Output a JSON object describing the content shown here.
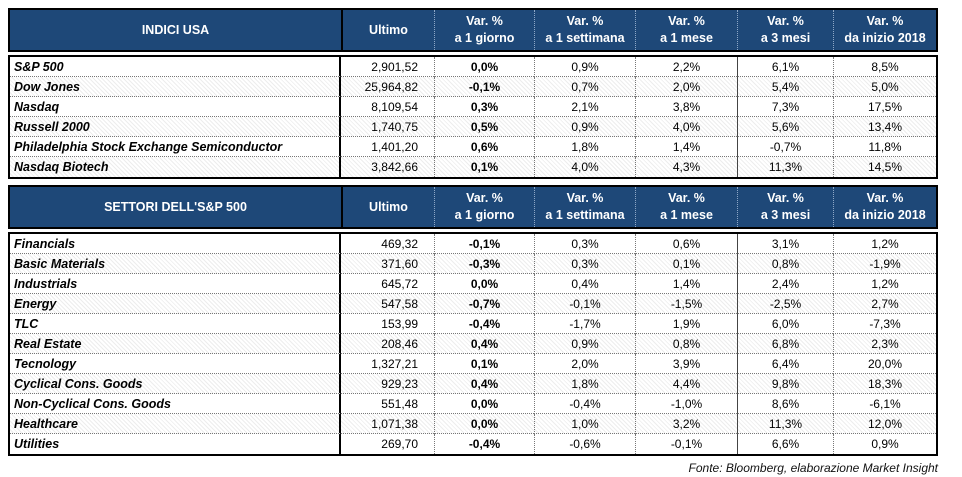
{
  "colors": {
    "header_bg": "#1E4878",
    "header_text": "#FFFFFF",
    "border": "#000000"
  },
  "headers": {
    "ultimo": "Ultimo",
    "var_top": "Var. %",
    "var_subs": [
      "a 1 giorno",
      "a 1 settimana",
      "a 1 mese",
      "a 3 mesi",
      "da inizio 2018"
    ]
  },
  "tables": [
    {
      "title": "INDICI USA",
      "rows": [
        {
          "name": "S&P 500",
          "ultimo": "2,901,52",
          "vars": [
            "0,0%",
            "0,9%",
            "2,2%",
            "6,1%",
            "8,5%"
          ]
        },
        {
          "name": "Dow Jones",
          "ultimo": "25,964,82",
          "vars": [
            "-0,1%",
            "0,7%",
            "2,0%",
            "5,4%",
            "5,0%"
          ]
        },
        {
          "name": "Nasdaq",
          "ultimo": "8,109,54",
          "vars": [
            "0,3%",
            "2,1%",
            "3,8%",
            "7,3%",
            "17,5%"
          ]
        },
        {
          "name": "Russell 2000",
          "ultimo": "1,740,75",
          "vars": [
            "0,5%",
            "0,9%",
            "4,0%",
            "5,6%",
            "13,4%"
          ]
        },
        {
          "name": "Philadelphia Stock Exchange Semiconductor",
          "ultimo": "1,401,20",
          "vars": [
            "0,6%",
            "1,8%",
            "1,4%",
            "-0,7%",
            "11,8%"
          ]
        },
        {
          "name": "Nasdaq Biotech",
          "ultimo": "3,842,66",
          "vars": [
            "0,1%",
            "4,0%",
            "4,3%",
            "11,3%",
            "14,5%"
          ]
        }
      ]
    },
    {
      "title": "SETTORI DELL'S&P 500",
      "rows": [
        {
          "name": "Financials",
          "ultimo": "469,32",
          "vars": [
            "-0,1%",
            "0,3%",
            "0,6%",
            "3,1%",
            "1,2%"
          ]
        },
        {
          "name": "Basic Materials",
          "ultimo": "371,60",
          "vars": [
            "-0,3%",
            "0,3%",
            "0,1%",
            "0,8%",
            "-1,9%"
          ]
        },
        {
          "name": "Industrials",
          "ultimo": "645,72",
          "vars": [
            "0,0%",
            "0,4%",
            "1,4%",
            "2,4%",
            "1,2%"
          ]
        },
        {
          "name": "Energy",
          "ultimo": "547,58",
          "vars": [
            "-0,7%",
            "-0,1%",
            "-1,5%",
            "-2,5%",
            "2,7%"
          ]
        },
        {
          "name": "TLC",
          "ultimo": "153,99",
          "vars": [
            "-0,4%",
            "-1,7%",
            "1,9%",
            "6,0%",
            "-7,3%"
          ]
        },
        {
          "name": "Real Estate",
          "ultimo": "208,46",
          "vars": [
            "0,4%",
            "0,9%",
            "0,8%",
            "6,8%",
            "2,3%"
          ]
        },
        {
          "name": "Tecnology",
          "ultimo": "1,327,21",
          "vars": [
            "0,1%",
            "2,0%",
            "3,9%",
            "6,4%",
            "20,0%"
          ]
        },
        {
          "name": "Cyclical Cons. Goods",
          "ultimo": "929,23",
          "vars": [
            "0,4%",
            "1,8%",
            "4,4%",
            "9,8%",
            "18,3%"
          ]
        },
        {
          "name": "Non-Cyclical Cons. Goods",
          "ultimo": "551,48",
          "vars": [
            "0,0%",
            "-0,4%",
            "-1,0%",
            "8,6%",
            "-6,1%"
          ]
        },
        {
          "name": "Healthcare",
          "ultimo": "1,071,38",
          "vars": [
            "0,0%",
            "1,0%",
            "3,2%",
            "11,3%",
            "12,0%"
          ]
        },
        {
          "name": "Utilities",
          "ultimo": "269,70",
          "vars": [
            "-0,4%",
            "-0,6%",
            "-0,1%",
            "6,6%",
            "0,9%"
          ]
        }
      ]
    }
  ],
  "footer": "Fonte: Bloomberg, elaborazione Market Insight"
}
